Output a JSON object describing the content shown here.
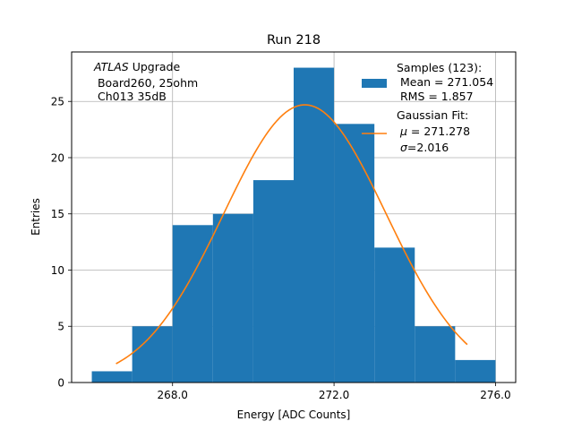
{
  "chart_data": {
    "type": "bar",
    "title": "Run 218",
    "xlabel": "Energy [ADC Counts]",
    "ylabel": "Entries",
    "xlim": [
      265.5,
      276.5
    ],
    "ylim": [
      0,
      29.4
    ],
    "grid": true,
    "xticks": [
      268,
      272,
      276
    ],
    "xtick_labels": [
      "268.0",
      "272.0",
      "276.0"
    ],
    "yticks": [
      0,
      5,
      10,
      15,
      20,
      25
    ],
    "ytick_labels": [
      "0",
      "5",
      "10",
      "15",
      "20",
      "25"
    ],
    "bin_edges": [
      266,
      267,
      268,
      269,
      270,
      271,
      272,
      273,
      274,
      275,
      276
    ],
    "counts": [
      1,
      5,
      14,
      15,
      18,
      28,
      23,
      12,
      5,
      2
    ],
    "hist_color": "#1f77b4",
    "fit": {
      "type": "gaussian",
      "mu": 271.278,
      "sigma": 2.016,
      "amplitude": 24.7,
      "x_range": [
        266.6,
        275.3
      ],
      "color": "#ff7f0e"
    },
    "annotation": {
      "italic": "ATLAS",
      "line1_rest": " Upgrade",
      "line2": " Board260, 25ohm",
      "line3": " Ch013 35dB"
    },
    "legend": {
      "placement": "top-right",
      "hist_label_lines": [
        "Samples (123):",
        " Mean = 271.054",
        " RMS = 1.857"
      ],
      "fit_label_line1": "Gaussian Fit:",
      "mu_symbol": "μ",
      "mu_rest": " = 271.278",
      "sigma_symbol": "σ",
      "sigma_rest": "=2.016"
    }
  }
}
